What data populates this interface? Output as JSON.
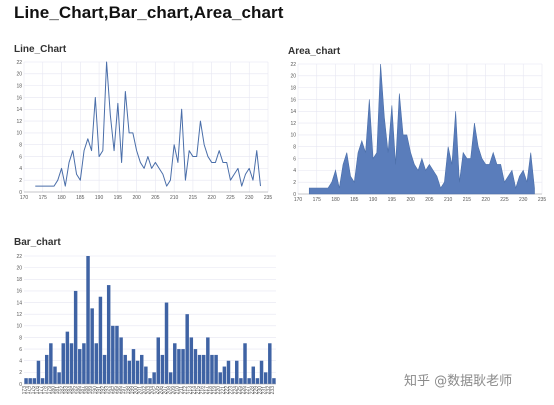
{
  "title": "Line_Chart,Bar_chart,Area_chart",
  "watermark": "知乎 @数据耿老师",
  "colors": {
    "line": "#4a6ea9",
    "bar": "#3f63a4",
    "area": "#5a7dbb",
    "grid": "#e6e6f2"
  },
  "chart_data": [
    {
      "id": "line",
      "type": "line",
      "title": "Line_Chart",
      "x_start": 173,
      "ylim": [
        0,
        22
      ],
      "yticks": [
        0,
        2,
        4,
        6,
        8,
        10,
        12,
        14,
        16,
        18,
        20,
        22
      ],
      "xlim": [
        170,
        235
      ],
      "xticks": [
        170,
        175,
        180,
        185,
        190,
        195,
        200,
        205,
        210,
        215,
        220,
        225,
        230,
        235
      ],
      "values": [
        1,
        1,
        1,
        1,
        1,
        1,
        2,
        4,
        1,
        5,
        7,
        3,
        2,
        7,
        9,
        7,
        16,
        6,
        7,
        22,
        13,
        7,
        15,
        5,
        17,
        10,
        10,
        7,
        5,
        4,
        6,
        4,
        5,
        4,
        3,
        1,
        2,
        8,
        5,
        14,
        2,
        7,
        6,
        6,
        12,
        8,
        6,
        5,
        5,
        7,
        5,
        5,
        2,
        3,
        4,
        1,
        3,
        4,
        2,
        7,
        1
      ]
    },
    {
      "id": "area",
      "type": "area",
      "title": "Area_chart",
      "x_start": 173,
      "ylim": [
        0,
        22
      ],
      "yticks": [
        0,
        2,
        4,
        6,
        8,
        10,
        12,
        14,
        16,
        18,
        20,
        22
      ],
      "xlim": [
        170,
        235
      ],
      "xticks": [
        170,
        175,
        180,
        185,
        190,
        195,
        200,
        205,
        210,
        215,
        220,
        225,
        230,
        235
      ],
      "values": [
        1,
        1,
        1,
        1,
        1,
        1,
        2,
        4,
        1,
        5,
        7,
        3,
        2,
        7,
        9,
        7,
        16,
        6,
        7,
        22,
        13,
        7,
        15,
        5,
        17,
        10,
        10,
        7,
        5,
        4,
        6,
        4,
        5,
        4,
        3,
        1,
        2,
        8,
        5,
        14,
        2,
        7,
        6,
        6,
        12,
        8,
        6,
        5,
        5,
        7,
        5,
        5,
        2,
        3,
        4,
        1,
        3,
        4,
        2,
        7,
        1
      ]
    },
    {
      "id": "bar",
      "type": "bar",
      "title": "Bar_chart",
      "ylim": [
        0,
        22
      ],
      "yticks": [
        0,
        2,
        4,
        6,
        8,
        10,
        12,
        14,
        16,
        18,
        20,
        22
      ],
      "categories": [
        "173",
        "174",
        "175",
        "176",
        "177",
        "178",
        "179",
        "180",
        "181",
        "182",
        "183",
        "184",
        "185",
        "186",
        "187",
        "188",
        "189",
        "190",
        "191",
        "192",
        "193",
        "194",
        "195",
        "196",
        "197",
        "198",
        "199",
        "200",
        "201",
        "202",
        "203",
        "204",
        "205",
        "206",
        "207",
        "208",
        "209",
        "210",
        "211",
        "212",
        "213",
        "214",
        "215",
        "216",
        "217",
        "218",
        "219",
        "220",
        "221",
        "222",
        "223",
        "224",
        "225",
        "226",
        "227",
        "228",
        "229",
        "230",
        "231",
        "232",
        "233"
      ],
      "values": [
        1,
        1,
        1,
        4,
        1,
        5,
        7,
        3,
        2,
        7,
        9,
        7,
        16,
        6,
        7,
        22,
        13,
        7,
        15,
        5,
        17,
        10,
        10,
        8,
        5,
        4,
        6,
        4,
        5,
        3,
        1,
        2,
        8,
        5,
        14,
        2,
        7,
        6,
        6,
        12,
        8,
        6,
        5,
        5,
        8,
        5,
        5,
        2,
        3,
        4,
        1,
        4,
        1,
        7,
        1,
        3,
        1,
        4,
        2,
        7,
        1
      ]
    }
  ]
}
